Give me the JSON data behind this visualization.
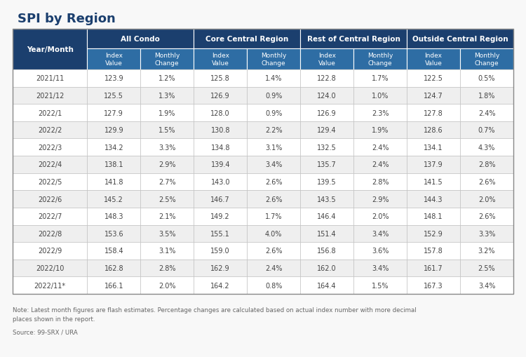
{
  "title": "SPI by Region",
  "rows": [
    [
      "2021/11",
      "123.9",
      "1.2%",
      "125.8",
      "1.4%",
      "122.8",
      "1.7%",
      "122.5",
      "0.5%"
    ],
    [
      "2021/12",
      "125.5",
      "1.3%",
      "126.9",
      "0.9%",
      "124.0",
      "1.0%",
      "124.7",
      "1.8%"
    ],
    [
      "2022/1",
      "127.9",
      "1.9%",
      "128.0",
      "0.9%",
      "126.9",
      "2.3%",
      "127.8",
      "2.4%"
    ],
    [
      "2022/2",
      "129.9",
      "1.5%",
      "130.8",
      "2.2%",
      "129.4",
      "1.9%",
      "128.6",
      "0.7%"
    ],
    [
      "2022/3",
      "134.2",
      "3.3%",
      "134.8",
      "3.1%",
      "132.5",
      "2.4%",
      "134.1",
      "4.3%"
    ],
    [
      "2022/4",
      "138.1",
      "2.9%",
      "139.4",
      "3.4%",
      "135.7",
      "2.4%",
      "137.9",
      "2.8%"
    ],
    [
      "2022/5",
      "141.8",
      "2.7%",
      "143.0",
      "2.6%",
      "139.5",
      "2.8%",
      "141.5",
      "2.6%"
    ],
    [
      "2022/6",
      "145.2",
      "2.5%",
      "146.7",
      "2.6%",
      "143.5",
      "2.9%",
      "144.3",
      "2.0%"
    ],
    [
      "2022/7",
      "148.3",
      "2.1%",
      "149.2",
      "1.7%",
      "146.4",
      "2.0%",
      "148.1",
      "2.6%"
    ],
    [
      "2022/8",
      "153.6",
      "3.5%",
      "155.1",
      "4.0%",
      "151.4",
      "3.4%",
      "152.9",
      "3.3%"
    ],
    [
      "2022/9",
      "158.4",
      "3.1%",
      "159.0",
      "2.6%",
      "156.8",
      "3.6%",
      "157.8",
      "3.2%"
    ],
    [
      "2022/10",
      "162.8",
      "2.8%",
      "162.9",
      "2.4%",
      "162.0",
      "3.4%",
      "161.7",
      "2.5%"
    ],
    [
      "2022/11*",
      "166.1",
      "2.0%",
      "164.2",
      "0.8%",
      "164.4",
      "1.5%",
      "167.3",
      "3.4%"
    ]
  ],
  "group_headers": [
    "All Condo",
    "Core Central Region",
    "Rest of Central Region",
    "Outside Central Region"
  ],
  "sub_headers": [
    "Index\nValue",
    "Monthly\nChange"
  ],
  "note_line1": "Note: Latest month figures are flash estimates. Percentage changes are calculated based on actual index number with more decimal",
  "note_line2": "places shown in the report.",
  "source": "Source: 99-SRX / URA",
  "title_color": "#1B3F6E",
  "header_bg": "#1B3F6E",
  "subheader_bg": "#2E6DA4",
  "header_text_color": "#FFFFFF",
  "row_bg_even": "#FFFFFF",
  "row_bg_odd": "#EFEFEF",
  "data_text_color": "#444444",
  "note_color": "#666666",
  "border_color": "#BBBBBB",
  "bg_color": "#F8F8F8"
}
